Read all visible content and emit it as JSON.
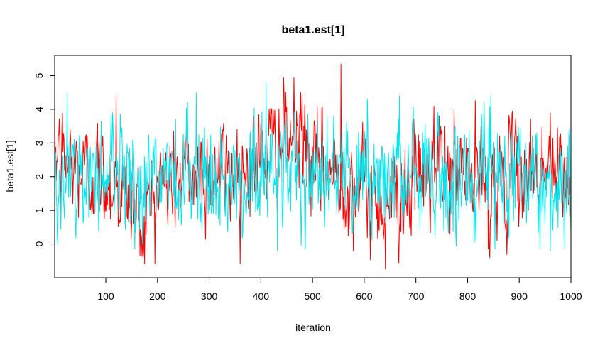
{
  "chart_data": {
    "type": "line",
    "title": "beta1.est[1]",
    "xlabel": "iteration",
    "ylabel": "beta1.est[1]",
    "xlim": [
      1,
      1000
    ],
    "ylim": [
      -1,
      5.6
    ],
    "xticks": [
      100,
      200,
      300,
      400,
      500,
      600,
      700,
      800,
      900,
      1000
    ],
    "yticks": [
      0,
      1,
      2,
      3,
      4,
      5
    ],
    "grid": false,
    "legend": "none",
    "series": [
      {
        "color": "#ff0000",
        "n_points": 1000,
        "mean": 2.05,
        "sd": 0.8,
        "min": -0.75,
        "max": 5.35,
        "anchors": [
          [
            1,
            2.6
          ],
          [
            50,
            2.2
          ],
          [
            100,
            2.0
          ],
          [
            150,
            1.3
          ],
          [
            170,
            0.6
          ],
          [
            200,
            1.8
          ],
          [
            250,
            2.0
          ],
          [
            300,
            2.1
          ],
          [
            350,
            2.2
          ],
          [
            400,
            2.6
          ],
          [
            450,
            3.1
          ],
          [
            480,
            3.2
          ],
          [
            500,
            2.2
          ],
          [
            550,
            2.0
          ],
          [
            600,
            1.6
          ],
          [
            640,
            1.2
          ],
          [
            700,
            1.9
          ],
          [
            750,
            2.2
          ],
          [
            800,
            2.1
          ],
          [
            850,
            1.7
          ],
          [
            900,
            2.1
          ],
          [
            950,
            2.3
          ],
          [
            1000,
            1.8
          ]
        ],
        "peaks": [
          [
            8,
            3.2
          ],
          [
            120,
            4.4
          ],
          [
            172,
            -0.4
          ],
          [
            555,
            5.35
          ],
          [
            641,
            -0.75
          ],
          [
            735,
            4.1
          ],
          [
            840,
            -0.15
          ],
          [
            960,
            3.9
          ]
        ]
      },
      {
        "color": "#00e5ee",
        "n_points": 1000,
        "mean": 2.0,
        "sd": 0.85,
        "min": -0.3,
        "max": 4.8,
        "anchors": [
          [
            1,
            1.8
          ],
          [
            50,
            2.0
          ],
          [
            100,
            2.0
          ],
          [
            150,
            1.6
          ],
          [
            200,
            2.0
          ],
          [
            250,
            2.0
          ],
          [
            300,
            1.7
          ],
          [
            350,
            2.1
          ],
          [
            400,
            2.0
          ],
          [
            450,
            2.4
          ],
          [
            500,
            2.3
          ],
          [
            550,
            1.9
          ],
          [
            600,
            2.0
          ],
          [
            650,
            2.2
          ],
          [
            700,
            2.0
          ],
          [
            750,
            1.8
          ],
          [
            800,
            2.0
          ],
          [
            850,
            2.1
          ],
          [
            900,
            2.0
          ],
          [
            950,
            1.8
          ],
          [
            1000,
            1.5
          ]
        ],
        "peaks": [
          [
            25,
            4.5
          ],
          [
            275,
            4.5
          ],
          [
            410,
            4.8
          ],
          [
            432,
            -0.2
          ],
          [
            960,
            -0.2
          ]
        ]
      }
    ]
  }
}
